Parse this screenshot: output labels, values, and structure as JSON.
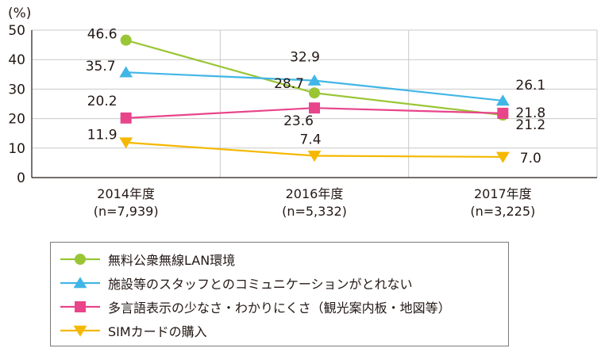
{
  "chart_data": {
    "type": "line",
    "unit_label": "(%)",
    "categories": [
      {
        "line1": "2014年度",
        "line2": "(n=7,939)"
      },
      {
        "line1": "2016年度",
        "line2": "(n=5,332)"
      },
      {
        "line1": "2017年度",
        "line2": "(n=3,225)"
      }
    ],
    "ylim": [
      0,
      50
    ],
    "yticks": [
      0,
      10,
      20,
      30,
      40,
      50
    ],
    "grid": true,
    "legend_position": "bottom",
    "series": [
      {
        "name": "無料公衆無線LAN環境",
        "color": "#9ac636",
        "marker": "circle",
        "values": [
          46.6,
          28.7,
          21.2
        ],
        "labels": [
          "46.6",
          "28.7",
          "21.2"
        ]
      },
      {
        "name": "施設等のスタッフとのコミュニケーションがとれない",
        "color": "#41b6e6",
        "marker": "triangle-up",
        "values": [
          35.7,
          32.9,
          26.1
        ],
        "labels": [
          "35.7",
          "32.9",
          "26.1"
        ]
      },
      {
        "name": "多言語表示の少なさ・わかりにくさ（観光案内板・地図等）",
        "color": "#e8458b",
        "marker": "square",
        "values": [
          20.2,
          23.6,
          21.8
        ],
        "labels": [
          "20.2",
          "23.6",
          "21.8"
        ]
      },
      {
        "name": "SIMカードの購入",
        "color": "#f5b800",
        "marker": "triangle-down",
        "values": [
          11.9,
          7.4,
          7.0
        ],
        "labels": [
          "11.9",
          "7.4",
          "7.0"
        ]
      }
    ]
  }
}
